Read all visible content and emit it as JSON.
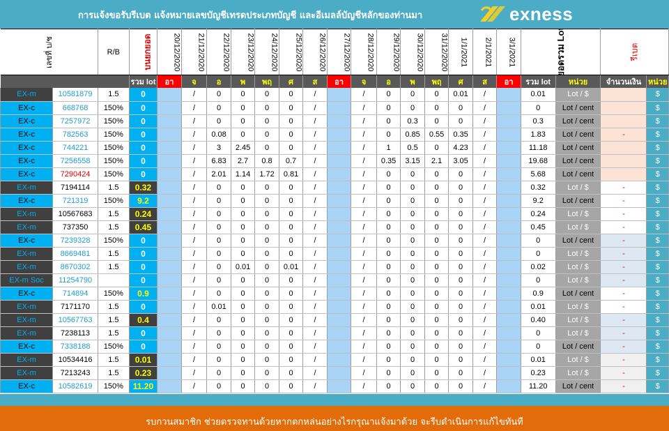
{
  "banner": {
    "title": "การแจ้งขอรับรีเบต  แจ้งหมายเลขบัญชีเทรดประเภทบัญชี และอีเมลล์บัญชีหลักของท่านมา",
    "logo_text": "exness"
  },
  "headers": {
    "account_col": "เลขที่ บ/ช",
    "rb_col": "R/B",
    "lot_col": "บนยกยอด",
    "dates": [
      "20/12/2020",
      "21/12/2020",
      "22/12/2020",
      "23/12/2020",
      "24/12/2020",
      "25/12/2020",
      "26/12/2020",
      "27/12/2020",
      "28/12/2020",
      "29/12/2020",
      "30/12/2020",
      "31/12/2020",
      "1/1/2021",
      "2/1/2021",
      "3/1/2021"
    ],
    "total_lot": "ยอดรวม Lot",
    "rebate": "รีเบต"
  },
  "subheaders": {
    "sum_lot": "รวม lot",
    "days": [
      "อา",
      "จ",
      "อ",
      "พ",
      "พฤ",
      "ศ",
      "ส",
      "อา",
      "จ",
      "อ",
      "พ",
      "พฤ",
      "ศ",
      "ส",
      "อา"
    ],
    "total_lot": "รวม lot",
    "unit": "หน่วย",
    "amount": "จำนวนเงิน",
    "currency_unit": "หน่วย"
  },
  "rows": [
    {
      "type": "EX-m",
      "acc": "10581879",
      "rb": "1.5",
      "sum": "0",
      "d": [
        "",
        "/",
        "0",
        "0",
        "0",
        "0",
        "/",
        "",
        "/",
        "0",
        "0",
        "0",
        "0.01",
        "/",
        ""
      ],
      "total": "0.01",
      "unit": "Lot / $",
      "money": "",
      "cur": "$"
    },
    {
      "type": "EX-c",
      "acc": "668768",
      "rb": "150%",
      "sum": "0",
      "d": [
        "",
        "/",
        "0",
        "0",
        "0",
        "0",
        "/",
        "",
        "/",
        "0",
        "0",
        "0",
        "0",
        "/",
        ""
      ],
      "total": "0",
      "unit": "Lot / cent",
      "money": "",
      "cur": "$"
    },
    {
      "type": "EX-c",
      "acc": "7257972",
      "rb": "150%",
      "sum": "0",
      "d": [
        "",
        "/",
        "0",
        "0",
        "0",
        "0",
        "/",
        "",
        "/",
        "0",
        "0.3",
        "0",
        "0",
        "/",
        ""
      ],
      "total": "0.3",
      "unit": "Lot / cent",
      "money": "",
      "cur": "$"
    },
    {
      "type": "EX-c",
      "acc": "782563",
      "rb": "150%",
      "sum": "0",
      "d": [
        "",
        "/",
        "0.08",
        "0",
        "0",
        "0",
        "/",
        "",
        "/",
        "0",
        "0.85",
        "0.55",
        "0.35",
        "/",
        ""
      ],
      "total": "1.83",
      "unit": "Lot / cent",
      "money": "-",
      "cur": "$"
    },
    {
      "type": "EX-c",
      "acc": "744221",
      "rb": "150%",
      "sum": "0",
      "d": [
        "",
        "/",
        "3",
        "2.45",
        "0",
        "0",
        "/",
        "",
        "/",
        "1",
        "0.5",
        "0",
        "4.23",
        "/",
        ""
      ],
      "total": "11.18",
      "unit": "Lot / cent",
      "money": "",
      "cur": "$"
    },
    {
      "type": "EX-c",
      "acc": "7256558",
      "rb": "150%",
      "sum": "0",
      "d": [
        "",
        "/",
        "6.83",
        "2.7",
        "0.8",
        "0.7",
        "/",
        "",
        "/",
        "0.35",
        "3.15",
        "2.1",
        "3.05",
        "/",
        ""
      ],
      "total": "19.68",
      "unit": "Lot / cent",
      "money": "",
      "cur": "$"
    },
    {
      "type": "EX-c",
      "acc": "7290424",
      "rb": "150%",
      "sum": "0",
      "d": [
        "",
        "/",
        "2.01",
        "1.14",
        "1.72",
        "0.81",
        "/",
        "",
        "/",
        "0",
        "0",
        "0",
        "0",
        "/",
        ""
      ],
      "total": "5.68",
      "unit": "Lot / cent",
      "money": "",
      "cur": "$"
    },
    {
      "type": "EX-m",
      "acc": "7194114",
      "rb": "1.5",
      "sum": "0.32",
      "d": [
        "",
        "/",
        "0",
        "0",
        "0",
        "0",
        "/",
        "",
        "/",
        "0",
        "0",
        "0",
        "0",
        "/",
        ""
      ],
      "total": "0.32",
      "unit": "Lot / $",
      "money": "-",
      "cur": "$"
    },
    {
      "type": "EX-c",
      "acc": "721319",
      "rb": "150%",
      "sum": "9.2",
      "d": [
        "",
        "/",
        "0",
        "0",
        "0",
        "0",
        "/",
        "",
        "/",
        "0",
        "0",
        "0",
        "0",
        "/",
        ""
      ],
      "total": "9.2",
      "unit": "Lot / cent",
      "money": "-",
      "cur": "$"
    },
    {
      "type": "EX-m",
      "acc": "10567683",
      "rb": "1.5",
      "sum": "0.24",
      "d": [
        "",
        "/",
        "0",
        "0",
        "0",
        "0",
        "/",
        "",
        "/",
        "0",
        "0",
        "0",
        "0",
        "/",
        ""
      ],
      "total": "0.24",
      "unit": "Lot / $",
      "money": "-",
      "cur": "$"
    },
    {
      "type": "EX-m",
      "acc": "737350",
      "rb": "1.5",
      "sum": "0.45",
      "d": [
        "",
        "/",
        "0",
        "0",
        "0",
        "0",
        "/",
        "",
        "/",
        "0",
        "0",
        "0",
        "0",
        "/",
        ""
      ],
      "total": "0.45",
      "unit": "Lot / $",
      "money": "-",
      "cur": "$"
    },
    {
      "type": "EX-c",
      "acc": "7239328",
      "rb": "150%",
      "sum": "0",
      "d": [
        "",
        "/",
        "0",
        "0",
        "0",
        "0",
        "/",
        "",
        "/",
        "0",
        "0",
        "0",
        "0",
        "/",
        ""
      ],
      "total": "0",
      "unit": "Lot / cent",
      "money": "-",
      "cur": "$"
    },
    {
      "type": "EX-m",
      "acc": "8669481",
      "rb": "1.5",
      "sum": "0",
      "d": [
        "",
        "/",
        "0",
        "0",
        "0",
        "0",
        "/",
        "",
        "/",
        "0",
        "0",
        "0",
        "0",
        "/",
        ""
      ],
      "total": "0",
      "unit": "Lot / $",
      "money": "-",
      "cur": "$"
    },
    {
      "type": "EX-m",
      "acc": "8670302",
      "rb": "1.5",
      "sum": "0",
      "d": [
        "",
        "/",
        "0",
        "0.01",
        "0",
        "0.01",
        "/",
        "",
        "/",
        "0",
        "0",
        "0",
        "0",
        "/",
        ""
      ],
      "total": "0.02",
      "unit": "Lot / $",
      "money": "-",
      "cur": "$"
    },
    {
      "type": "EX-m Soc",
      "acc": "11254790",
      "rb": "",
      "sum": "0",
      "d": [
        "",
        "/",
        "0",
        "0",
        "0",
        "0",
        "/",
        "",
        "/",
        "0",
        "0",
        "0",
        "0",
        "/",
        ""
      ],
      "total": "0",
      "unit": "Lot / $",
      "money": "-",
      "cur": "$"
    },
    {
      "type": "EX-c",
      "acc": "714894",
      "rb": "150%",
      "sum": "0.9",
      "d": [
        "",
        "/",
        "0",
        "0",
        "0",
        "0",
        "/",
        "",
        "/",
        "0",
        "0",
        "0",
        "0",
        "/",
        ""
      ],
      "total": "0.9",
      "unit": "Lot / cent",
      "money": "-",
      "cur": "$"
    },
    {
      "type": "EX-m",
      "acc": "7171170",
      "rb": "1.5",
      "sum": "0",
      "d": [
        "",
        "/",
        "0.01",
        "0",
        "0",
        "0",
        "/",
        "",
        "/",
        "0",
        "0",
        "0",
        "0",
        "/",
        ""
      ],
      "total": "0.01",
      "unit": "Lot / $",
      "money": "-",
      "cur": "$"
    },
    {
      "type": "EX-m",
      "acc": "10567763",
      "rb": "1.5",
      "sum": "0.4",
      "d": [
        "",
        "/",
        "0",
        "0",
        "0",
        "0",
        "/",
        "",
        "/",
        "0",
        "0",
        "0",
        "0",
        "/",
        ""
      ],
      "total": "0.40",
      "unit": "Lot / $",
      "money": "-",
      "cur": "$"
    },
    {
      "type": "EX-m",
      "acc": "7238113",
      "rb": "1.5",
      "sum": "0",
      "d": [
        "",
        "/",
        "0",
        "0",
        "0",
        "0",
        "/",
        "",
        "/",
        "0",
        "0",
        "0",
        "0",
        "/",
        ""
      ],
      "total": "0",
      "unit": "Lot / $",
      "money": "-",
      "cur": "$"
    },
    {
      "type": "EX-c",
      "acc": "7338188",
      "rb": "150%",
      "sum": "0",
      "d": [
        "",
        "/",
        "0",
        "0",
        "0",
        "0",
        "/",
        "",
        "/",
        "0",
        "0",
        "0",
        "0",
        "/",
        ""
      ],
      "total": "0",
      "unit": "Lot / cent",
      "money": "-",
      "cur": "$"
    },
    {
      "type": "EX-m",
      "acc": "10534416",
      "rb": "1.5",
      "sum": "0.01",
      "d": [
        "",
        "/",
        "0",
        "0",
        "0",
        "0",
        "/",
        "",
        "/",
        "0",
        "0",
        "0",
        "0",
        "/",
        ""
      ],
      "total": "0.01",
      "unit": "Lot / $",
      "money": "-",
      "cur": "$"
    },
    {
      "type": "EX-m",
      "acc": "7213243",
      "rb": "1.5",
      "sum": "0.23",
      "d": [
        "",
        "/",
        "0",
        "0",
        "0",
        "0",
        "/",
        "",
        "/",
        "0",
        "0",
        "0",
        "0",
        "/",
        ""
      ],
      "total": "0.23",
      "unit": "Lot / $",
      "money": "-",
      "cur": "$"
    },
    {
      "type": "EX-c",
      "acc": "10582619",
      "rb": "150%",
      "sum": "11.20",
      "d": [
        "",
        "/",
        "0",
        "0",
        "0",
        "0",
        "/",
        "",
        "/",
        "0",
        "0",
        "0",
        "0",
        "/",
        ""
      ],
      "total": "11.20",
      "unit": "Lot / cent",
      "money": "-",
      "cur": "$"
    }
  ],
  "footer": {
    "text": "รบกวนสมาชิก ช่วยตรวจทานด้วยหากตกหล่นอย่างไรกรุณาแจ้งมาด้วย จะรีบดำเนินการแก้ไขทันที"
  }
}
